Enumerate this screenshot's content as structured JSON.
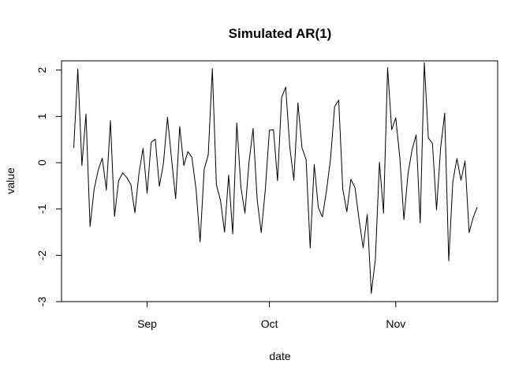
{
  "chart_data": {
    "type": "line",
    "title": "Simulated AR(1)",
    "xlabel": "date",
    "ylabel": "value",
    "x_start": "2015-08-14",
    "x_step_days": 1,
    "xlim": [
      "2015-08-11",
      "2015-11-26"
    ],
    "ylim": [
      -3,
      2.2
    ],
    "x_ticks": [
      {
        "label": "Sep",
        "date": "2015-09-01"
      },
      {
        "label": "Oct",
        "date": "2015-10-01"
      },
      {
        "label": "Nov",
        "date": "2015-11-01"
      }
    ],
    "y_ticks": [
      -3,
      -2,
      -1,
      0,
      1,
      2
    ],
    "grid": false,
    "color": "#000000",
    "series": [
      {
        "values": [
          0.32,
          2.02,
          -0.06,
          1.05,
          -1.38,
          -0.57,
          -0.16,
          0.1,
          -0.59,
          0.91,
          -1.16,
          -0.39,
          -0.22,
          -0.32,
          -0.47,
          -1.08,
          -0.23,
          0.31,
          -0.66,
          0.44,
          0.51,
          -0.51,
          -0.02,
          0.98,
          0.08,
          -0.78,
          0.78,
          -0.06,
          0.24,
          0.11,
          -0.57,
          -1.71,
          -0.14,
          0.17,
          2.03,
          -0.48,
          -0.81,
          -1.5,
          -0.27,
          -1.54,
          0.86,
          -0.52,
          -1.09,
          0.01,
          0.74,
          -0.8,
          -1.51,
          -0.58,
          0.7,
          0.71,
          -0.39,
          1.41,
          1.63,
          0.34,
          -0.38,
          1.29,
          0.32,
          0.07,
          -1.84,
          -0.04,
          -0.97,
          -1.17,
          -0.61,
          0.08,
          1.21,
          1.35,
          -0.57,
          -1.06,
          -0.36,
          -0.54,
          -1.23,
          -1.84,
          -1.12,
          -2.82,
          -2.08,
          0.01,
          -1.09,
          2.05,
          0.71,
          0.97,
          0.11,
          -1.23,
          -0.24,
          0.28,
          0.6,
          -1.3,
          2.16,
          0.53,
          0.42,
          -1.02,
          0.31,
          1.07,
          -2.12,
          -0.41,
          0.09,
          -0.38,
          0.04,
          -1.51,
          -1.18,
          -0.96
        ]
      }
    ]
  }
}
